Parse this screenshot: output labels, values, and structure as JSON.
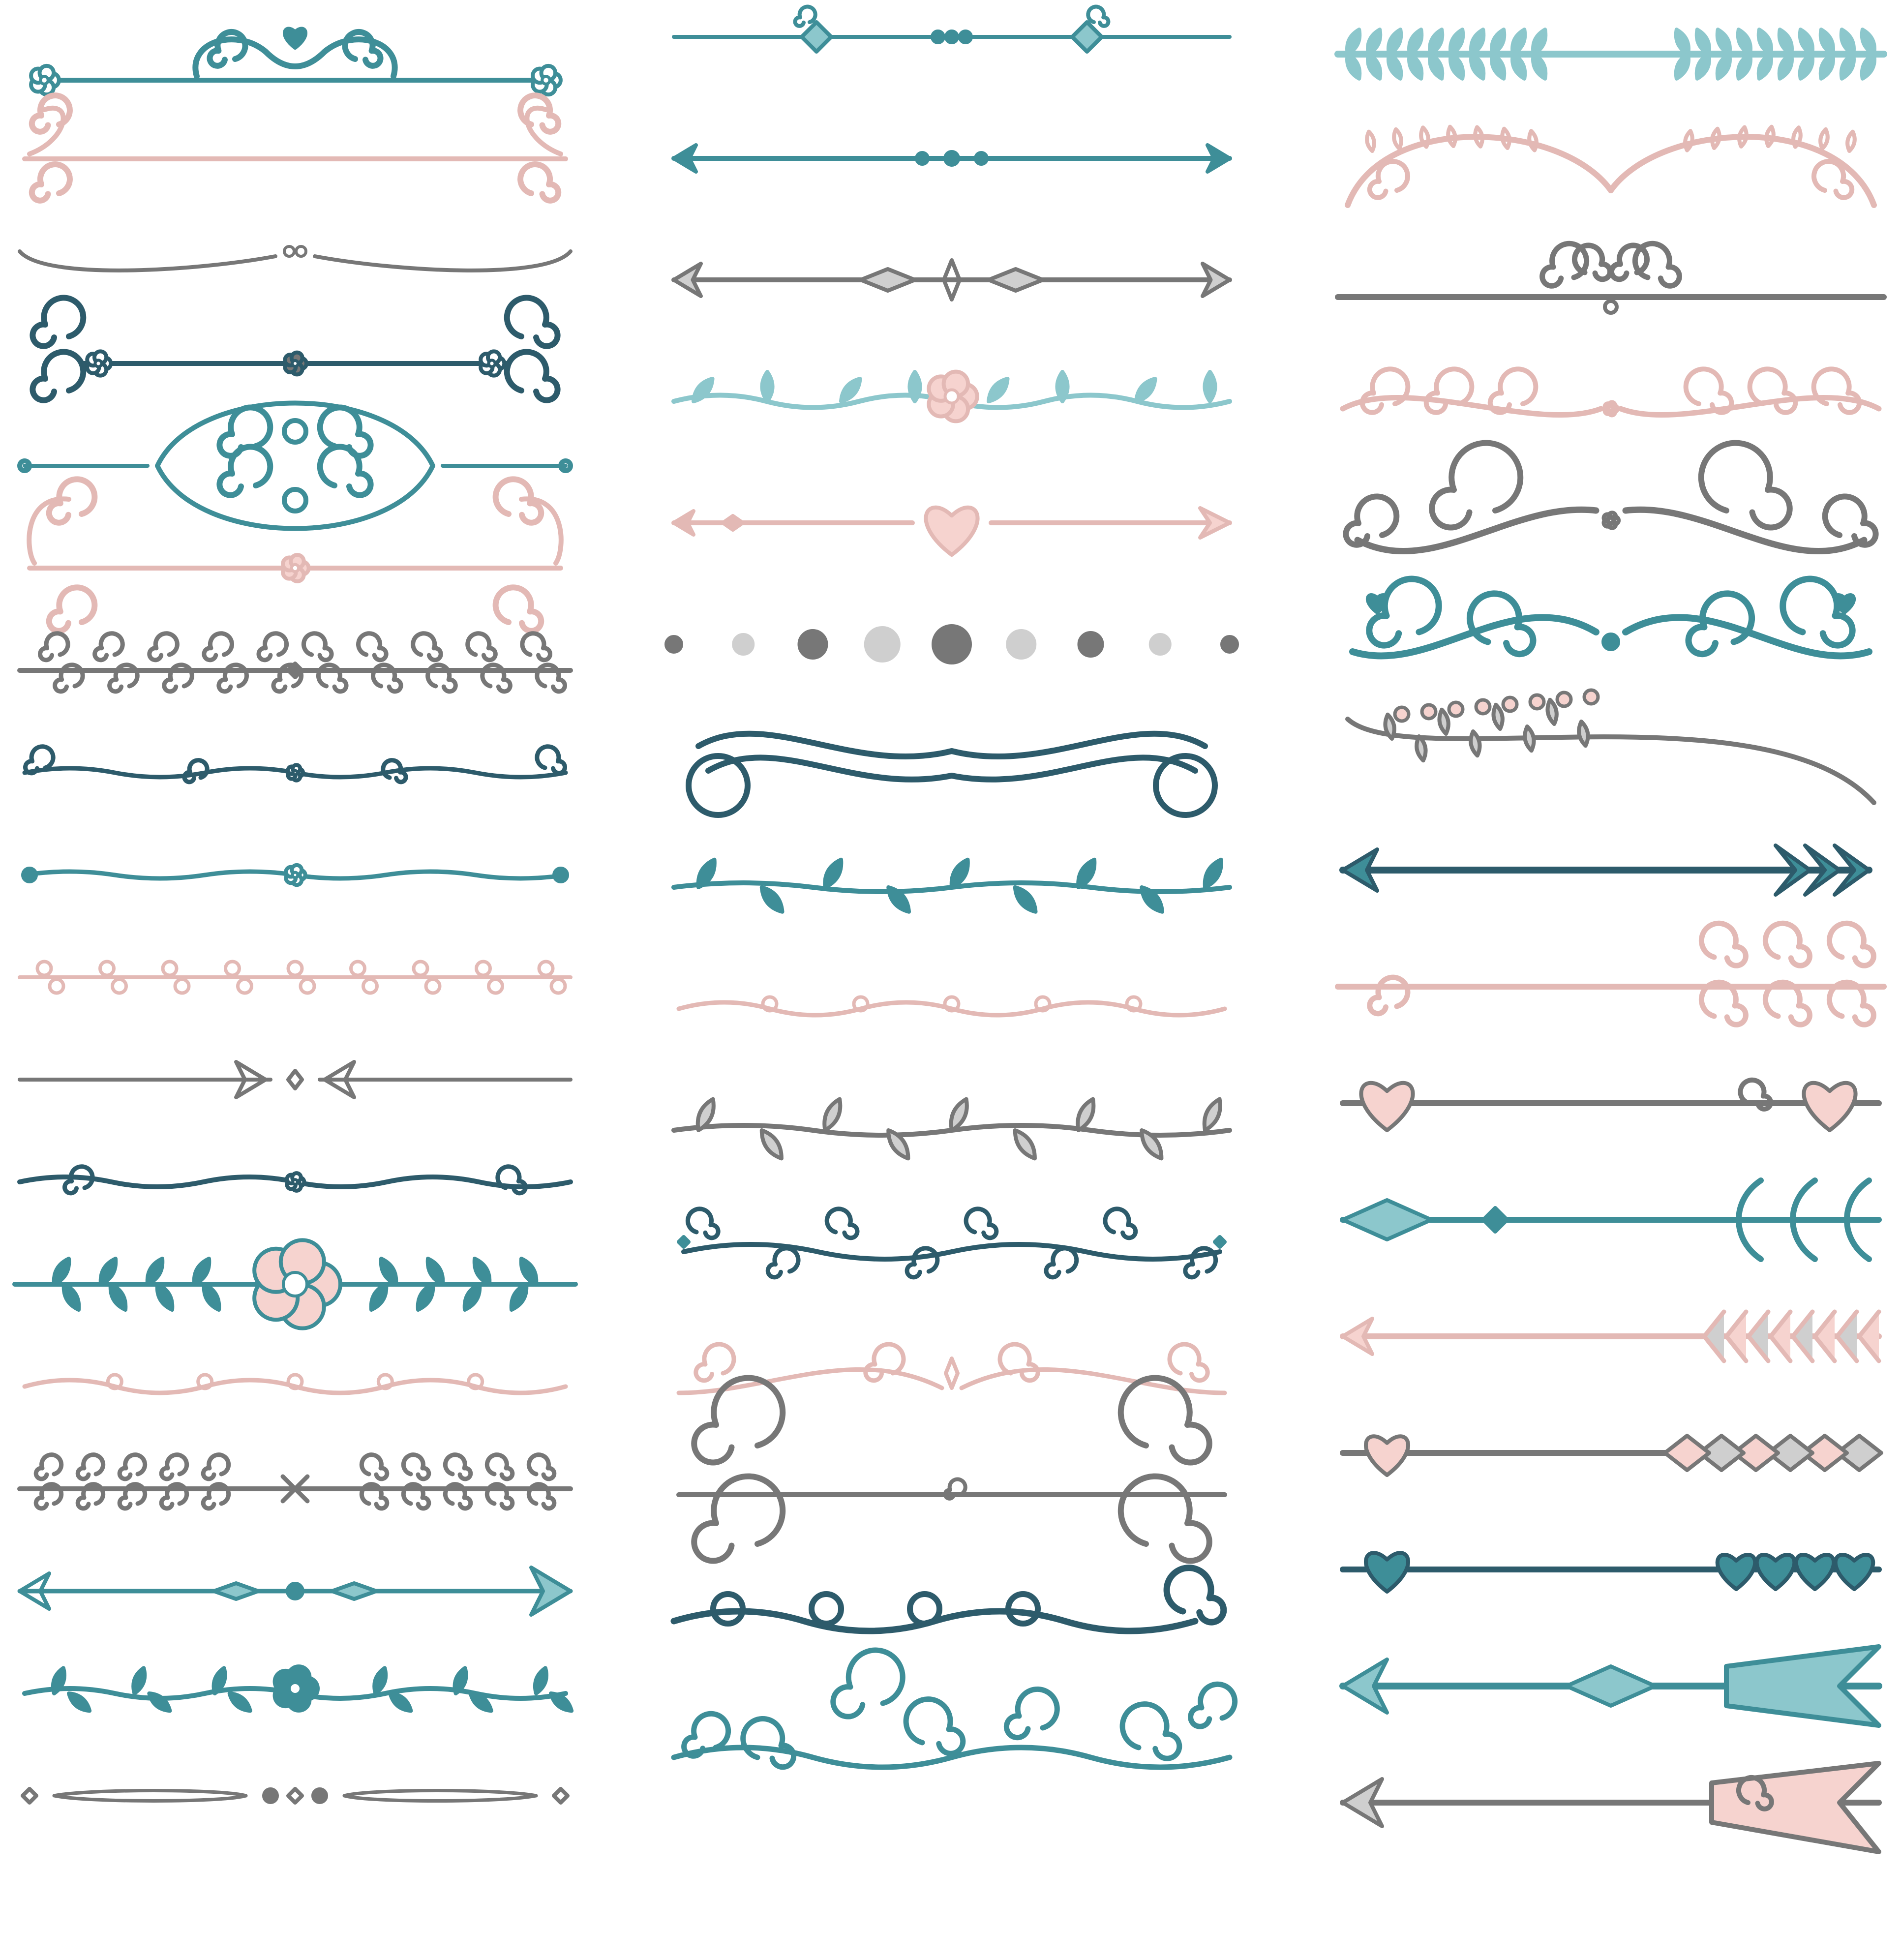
{
  "palette": {
    "teal": "#3e8e98",
    "dark_teal": "#2d5b6b",
    "light_teal": "#8cc7cc",
    "pink": "#e3b9b5",
    "light_pink": "#f6d3cf",
    "gray": "#777777",
    "light_gray": "#cfcfcf"
  },
  "columns": [
    {
      "name": "left",
      "dividers": [
        {
          "icon": "heart-scroll-divider-icon",
          "color": "teal"
        },
        {
          "icon": "scroll-bracket-divider-icon",
          "color": "pink"
        },
        {
          "icon": "thin-swash-divider-icon",
          "color": "gray"
        },
        {
          "icon": "curl-knot-divider-icon",
          "color": "dark_teal"
        },
        {
          "icon": "ornate-cartouche-divider-icon",
          "color": "teal"
        },
        {
          "icon": "tall-scroll-flower-divider-icon",
          "color": "pink"
        },
        {
          "icon": "curl-row-divider-icon",
          "color": "gray"
        },
        {
          "icon": "wave-curl-divider-icon",
          "color": "dark_teal"
        },
        {
          "icon": "wave-flower-divider-icon",
          "color": "teal"
        },
        {
          "icon": "loop-chain-divider-icon",
          "color": "pink"
        },
        {
          "icon": "arrow-pair-divider-icon",
          "color": "gray"
        },
        {
          "icon": "wave-knot-divider-icon",
          "color": "dark_teal"
        },
        {
          "icon": "flower-branch-divider-icon",
          "color": "teal"
        },
        {
          "icon": "loop-wave-divider-icon",
          "color": "pink"
        },
        {
          "icon": "curl-cross-divider-icon",
          "color": "gray"
        },
        {
          "icon": "diamond-arrow-divider-icon",
          "color": "teal"
        },
        {
          "icon": "leaf-flower-divider-icon",
          "color": "teal"
        },
        {
          "icon": "diamond-dot-divider-icon",
          "color": "gray"
        }
      ]
    },
    {
      "name": "middle",
      "dividers": [
        {
          "icon": "diamond-ornament-divider-icon",
          "color": "teal"
        },
        {
          "icon": "double-arrow-divider-icon",
          "color": "teal"
        },
        {
          "icon": "gray-arrow-divider-icon",
          "color": "gray"
        },
        {
          "icon": "leaf-flower-vine-divider-icon",
          "color": "light_teal"
        },
        {
          "icon": "heart-arrow-divider-icon",
          "color": "pink"
        },
        {
          "icon": "dot-row-divider-icon",
          "color": "gray"
        },
        {
          "icon": "ribbon-banner-divider-icon",
          "color": "dark_teal"
        },
        {
          "icon": "leaf-vine-divider-icon",
          "color": "teal"
        },
        {
          "icon": "loop-wave-divider-icon",
          "color": "pink"
        },
        {
          "icon": "gray-leaf-vine-divider-icon",
          "color": "gray"
        },
        {
          "icon": "curl-vine-divider-icon",
          "color": "dark_teal"
        },
        {
          "icon": "swirl-fleur-divider-icon",
          "color": "pink"
        },
        {
          "icon": "big-scroll-bracket-divider-icon",
          "color": "gray"
        },
        {
          "icon": "loop-ribbon-divider-icon",
          "color": "dark_teal"
        },
        {
          "icon": "swirl-cluster-divider-icon",
          "color": "teal"
        }
      ]
    },
    {
      "name": "right",
      "dividers": [
        {
          "icon": "laurel-branch-divider-icon",
          "color": "light_teal"
        },
        {
          "icon": "leafy-arch-divider-icon",
          "color": "pink"
        },
        {
          "icon": "center-swirl-line-divider-icon",
          "color": "gray"
        },
        {
          "icon": "double-swirl-divider-icon",
          "color": "pink"
        },
        {
          "icon": "horn-scroll-divider-icon",
          "color": "gray"
        },
        {
          "icon": "tulip-swirl-divider-icon",
          "color": "teal"
        },
        {
          "icon": "acorn-branch-divider-icon",
          "color": "gray"
        },
        {
          "icon": "feather-arrow-divider-icon",
          "color": "dark_teal"
        },
        {
          "icon": "curl-arrow-divider-icon",
          "color": "pink"
        },
        {
          "icon": "heart-tip-arrow-divider-icon",
          "color": "gray"
        },
        {
          "icon": "moon-arrow-divider-icon",
          "color": "teal"
        },
        {
          "icon": "chevron-arrow-divider-icon",
          "color": "pink"
        },
        {
          "icon": "heart-feather-arrow-divider-icon",
          "color": "gray"
        },
        {
          "icon": "dark-heart-arrow-divider-icon",
          "color": "dark_teal"
        },
        {
          "icon": "wide-feather-arrow-divider-icon",
          "color": "teal"
        },
        {
          "icon": "pink-feather-arrow-divider-icon",
          "color": "gray"
        }
      ]
    }
  ]
}
